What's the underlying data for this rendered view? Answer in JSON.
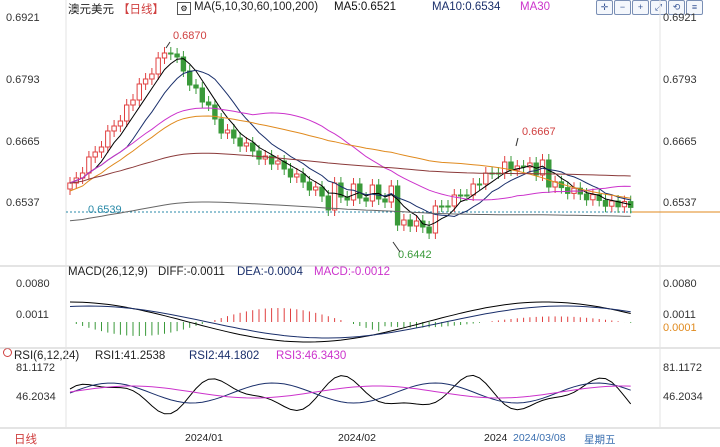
{
  "header": {
    "symbol": "澳元美元",
    "period": "【日线】",
    "ma_params": "MA(5,10,30,60,100,200)",
    "ma5": "MA5:0.6521",
    "ma10": "MA10:0.6534",
    "ma30": "MA30"
  },
  "macd_header": {
    "params": "MACD(26,12,9)",
    "diff": "DIFF:-0.0011",
    "dea": "DEA:-0.0004",
    "macd": "MACD:-0.0012"
  },
  "rsi_header": {
    "params": "RSI(6,12,24)",
    "rsi1": "RSI1:41.2538",
    "rsi2": "RSI2:44.1802",
    "rsi3": "RSI3:46.3430"
  },
  "price_axis": {
    "left": [
      "0.6921",
      "0.6793",
      "0.6665",
      "0.6537"
    ],
    "right": [
      "0.6921",
      "0.6793",
      "0.6665",
      "0.6537"
    ]
  },
  "macd_axis": {
    "left": [
      "0.0080",
      "0.0011"
    ],
    "right": [
      "0.0080",
      "0.0011",
      "0.0001"
    ]
  },
  "rsi_axis": {
    "left": [
      "81.1172",
      "46.2034"
    ],
    "right": [
      "81.1172",
      "46.2034"
    ]
  },
  "annotations": {
    "high1": "0.6870",
    "high2": "0.6667",
    "low": "0.6442",
    "current": "0.6539"
  },
  "footer": {
    "period": "日线",
    "dates": [
      "2024/01",
      "2024/02",
      "2024"
    ],
    "cursor_date": "2024/03/08",
    "weekday": "星期五"
  },
  "colors": {
    "up": "#e04040",
    "down": "#3a9a3a",
    "ma5": "#000000",
    "ma10": "#1a2f6b",
    "ma30": "#cc33cc",
    "ma60": "#e08a1e",
    "ma100": "#8b3a3a",
    "ma200": "#666666",
    "current_line": "#2a8aa8"
  }
}
